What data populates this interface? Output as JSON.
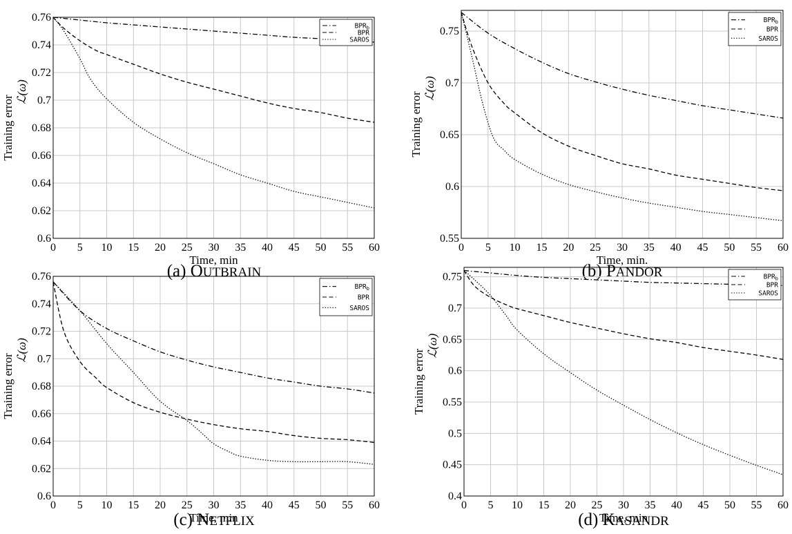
{
  "chart_data": [
    {
      "type": "line",
      "caption": "(a) Outbrain",
      "xlabel": "Time, min",
      "ylabel": "Training error",
      "ylabel_math": "ℒ(ω)",
      "xlim": [
        0,
        60
      ],
      "ylim": [
        0.6,
        0.76
      ],
      "xticks": [
        0,
        5,
        10,
        15,
        20,
        25,
        30,
        35,
        40,
        45,
        50,
        55,
        60
      ],
      "yticks": [
        0.6,
        0.62,
        0.64,
        0.66,
        0.68,
        0.7,
        0.72,
        0.74,
        0.76
      ],
      "ytick_labels": [
        "0.6",
        "0.62",
        "0.64",
        "0.66",
        "0.68",
        "0.7",
        "0.72",
        "0.74",
        "0.76"
      ],
      "grid": true,
      "legend_position": "top-right",
      "series": [
        {
          "name": "BPR",
          "name_sub": "b",
          "style": "dashdot",
          "x": [
            0,
            5,
            10,
            15,
            20,
            25,
            30,
            35,
            40,
            45,
            50,
            55,
            60
          ],
          "y": [
            0.76,
            0.758,
            0.756,
            0.7545,
            0.753,
            0.7515,
            0.75,
            0.7485,
            0.747,
            0.7455,
            0.7445,
            0.7435,
            0.742
          ]
        },
        {
          "name": "BPR",
          "style": "dashed",
          "x": [
            0,
            2,
            5,
            8,
            10,
            15,
            20,
            25,
            30,
            35,
            40,
            45,
            50,
            55,
            60
          ],
          "y": [
            0.76,
            0.752,
            0.743,
            0.736,
            0.733,
            0.726,
            0.719,
            0.713,
            0.708,
            0.703,
            0.698,
            0.694,
            0.691,
            0.687,
            0.684
          ]
        },
        {
          "name": "SAROS",
          "style": "dotted",
          "x": [
            0,
            2,
            5,
            7,
            10,
            15,
            20,
            25,
            30,
            35,
            40,
            45,
            50,
            55,
            60
          ],
          "y": [
            0.76,
            0.75,
            0.73,
            0.715,
            0.701,
            0.684,
            0.672,
            0.662,
            0.654,
            0.646,
            0.64,
            0.634,
            0.63,
            0.626,
            0.622
          ]
        }
      ]
    },
    {
      "type": "line",
      "caption": "(b) Pandor",
      "xlabel": "Time, min.",
      "ylabel": "Training error",
      "ylabel_math": "ℒ(ω)",
      "xlim": [
        0,
        60
      ],
      "ylim": [
        0.55,
        0.77
      ],
      "xticks": [
        0,
        5,
        10,
        15,
        20,
        25,
        30,
        35,
        40,
        45,
        50,
        55,
        60
      ],
      "yticks": [
        0.55,
        0.6,
        0.65,
        0.7,
        0.75
      ],
      "ytick_labels": [
        "0.55",
        "0.6",
        "0.65",
        "0.7",
        "0.75"
      ],
      "grid": true,
      "legend_position": "top-right",
      "series": [
        {
          "name": "BPR",
          "name_sub": "b",
          "style": "dashdot",
          "x": [
            0,
            5,
            10,
            15,
            20,
            25,
            30,
            35,
            40,
            45,
            50,
            55,
            60
          ],
          "y": [
            0.768,
            0.748,
            0.733,
            0.72,
            0.709,
            0.701,
            0.694,
            0.688,
            0.683,
            0.678,
            0.674,
            0.67,
            0.666
          ]
        },
        {
          "name": "BPR",
          "style": "dashed",
          "x": [
            0,
            2,
            5,
            8,
            10,
            15,
            20,
            25,
            30,
            35,
            40,
            45,
            50,
            55,
            60
          ],
          "y": [
            0.768,
            0.735,
            0.7,
            0.68,
            0.671,
            0.652,
            0.639,
            0.63,
            0.622,
            0.617,
            0.611,
            0.607,
            0.603,
            0.599,
            0.596
          ]
        },
        {
          "name": "SAROS",
          "style": "dotted",
          "x": [
            0,
            2,
            4,
            6,
            8,
            10,
            15,
            20,
            25,
            30,
            35,
            40,
            45,
            50,
            55,
            60
          ],
          "y": [
            0.768,
            0.725,
            0.68,
            0.647,
            0.635,
            0.626,
            0.612,
            0.602,
            0.595,
            0.589,
            0.584,
            0.58,
            0.576,
            0.573,
            0.57,
            0.567
          ]
        }
      ]
    },
    {
      "type": "line",
      "caption": "(c) Netflix",
      "xlabel": "Time, min",
      "ylabel": "Training error",
      "ylabel_math": "ℒ(ω)",
      "xlim": [
        0,
        60
      ],
      "ylim": [
        0.6,
        0.76
      ],
      "xticks": [
        0,
        5,
        10,
        15,
        20,
        25,
        30,
        35,
        40,
        45,
        50,
        55,
        60
      ],
      "yticks": [
        0.6,
        0.62,
        0.64,
        0.66,
        0.68,
        0.7,
        0.72,
        0.74,
        0.76
      ],
      "ytick_labels": [
        "0.6",
        "0.62",
        "0.64",
        "0.66",
        "0.68",
        "0.7",
        "0.72",
        "0.74",
        "0.76"
      ],
      "grid": true,
      "legend_position": "top-right",
      "series": [
        {
          "name": "BPR",
          "name_sub": "b",
          "style": "dashdot",
          "x": [
            0,
            5,
            10,
            15,
            20,
            25,
            30,
            35,
            40,
            45,
            50,
            55,
            60
          ],
          "y": [
            0.756,
            0.735,
            0.722,
            0.713,
            0.705,
            0.699,
            0.694,
            0.69,
            0.686,
            0.683,
            0.68,
            0.678,
            0.675
          ]
        },
        {
          "name": "BPR",
          "style": "dashed",
          "x": [
            0,
            2,
            5,
            8,
            10,
            15,
            20,
            25,
            30,
            35,
            40,
            45,
            50,
            55,
            60
          ],
          "y": [
            0.756,
            0.72,
            0.698,
            0.686,
            0.679,
            0.668,
            0.661,
            0.656,
            0.652,
            0.649,
            0.647,
            0.644,
            0.642,
            0.641,
            0.639
          ]
        },
        {
          "name": "SAROS",
          "style": "dotted",
          "x": [
            0,
            5,
            10,
            15,
            20,
            25,
            28,
            30,
            33,
            35,
            40,
            45,
            50,
            55,
            60
          ],
          "y": [
            0.756,
            0.735,
            0.711,
            0.69,
            0.669,
            0.655,
            0.645,
            0.638,
            0.632,
            0.629,
            0.626,
            0.625,
            0.625,
            0.625,
            0.623
          ]
        }
      ]
    },
    {
      "type": "line",
      "caption": "(d) Kasandr",
      "xlabel": "Time, min",
      "ylabel": "Training error",
      "ylabel_math": "ℒ(ω)",
      "xlim": [
        0,
        60
      ],
      "ylim": [
        0.4,
        0.765
      ],
      "xticks": [
        0,
        5,
        10,
        15,
        20,
        25,
        30,
        35,
        40,
        45,
        50,
        55,
        60
      ],
      "yticks": [
        0.4,
        0.45,
        0.5,
        0.55,
        0.6,
        0.65,
        0.7,
        0.75
      ],
      "ytick_labels": [
        "0.4",
        "0.45",
        "0.5",
        "0.55",
        "0.6",
        "0.65",
        "0.7",
        "0.75"
      ],
      "grid": true,
      "legend_position": "top-right",
      "series": [
        {
          "name": "BPR",
          "name_sub": "b",
          "style": "dashdot",
          "x": [
            0,
            5,
            10,
            15,
            20,
            25,
            30,
            35,
            40,
            45,
            50,
            55,
            60
          ],
          "y": [
            0.76,
            0.756,
            0.752,
            0.749,
            0.747,
            0.745,
            0.743,
            0.741,
            0.74,
            0.739,
            0.738,
            0.737,
            0.736
          ]
        },
        {
          "name": "BPR",
          "style": "dashed",
          "x": [
            0,
            2,
            5,
            8,
            10,
            15,
            20,
            25,
            30,
            35,
            40,
            45,
            50,
            55,
            60
          ],
          "y": [
            0.76,
            0.735,
            0.717,
            0.705,
            0.699,
            0.688,
            0.677,
            0.668,
            0.659,
            0.651,
            0.645,
            0.637,
            0.631,
            0.625,
            0.618
          ]
        },
        {
          "name": "SAROS",
          "style": "dotted",
          "x": [
            0,
            2,
            5,
            8,
            10,
            15,
            20,
            25,
            30,
            35,
            40,
            45,
            50,
            55,
            60
          ],
          "y": [
            0.76,
            0.745,
            0.72,
            0.687,
            0.665,
            0.627,
            0.597,
            0.569,
            0.545,
            0.522,
            0.501,
            0.482,
            0.465,
            0.449,
            0.434
          ]
        }
      ]
    }
  ],
  "captions": {
    "a": {
      "prefix": "(a) ",
      "initial": "O",
      "rest": "utbrain"
    },
    "b": {
      "prefix": "(b) ",
      "initial": "P",
      "rest": "andor"
    },
    "c": {
      "prefix": "(c) ",
      "initial": "N",
      "rest": "etflix"
    },
    "d": {
      "prefix": "(d) ",
      "initial": "K",
      "rest": "asandr"
    }
  }
}
